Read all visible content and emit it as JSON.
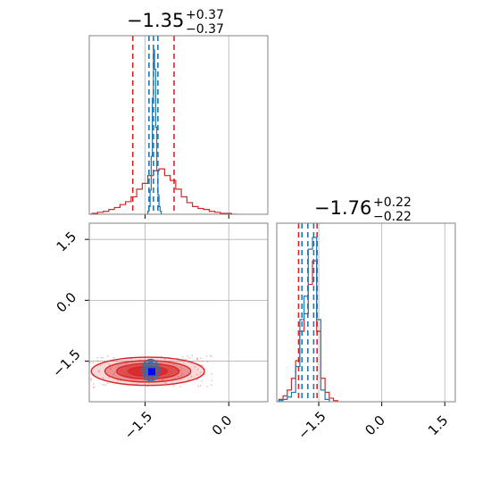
{
  "chart_data": {
    "type": "corner",
    "colors": {
      "series_a": "#1f77b4",
      "series_b": "#d62728",
      "marker": "#0000ff",
      "grid": "#b0b0b0",
      "frame": "#808080"
    },
    "panels": [
      {
        "type": "histogram",
        "position": "top-left",
        "title": {
          "value": "−1.35",
          "upper": "+0.37",
          "lower": "−0.37"
        },
        "xlim": [
          -2.5,
          0.7
        ],
        "xticks": [
          -1.5,
          0.0
        ],
        "grid": true,
        "series": [
          {
            "color": "#1f77b4",
            "bins_x": [
              -1.44,
              -1.42,
              -1.4,
              -1.38,
              -1.36,
              -1.34,
              -1.32,
              -1.3,
              -1.28,
              -1.26,
              -1.24,
              -1.22
            ],
            "counts": [
              3,
              8,
              25,
              60,
              120,
              170,
              150,
              90,
              45,
              20,
              8,
              3
            ],
            "quantile_lines": [
              -1.43,
              -1.35,
              -1.27
            ]
          },
          {
            "color": "#d62728",
            "bins_x": [
              -2.5,
              -2.4,
              -2.3,
              -2.2,
              -2.1,
              -2.0,
              -1.9,
              -1.8,
              -1.7,
              -1.6,
              -1.5,
              -1.4,
              -1.3,
              -1.2,
              -1.1,
              -1.0,
              -0.9,
              -0.8,
              -0.7,
              -0.6,
              -0.5,
              -0.4,
              -0.3,
              -0.2,
              -0.1,
              0.0,
              0.1
            ],
            "counts": [
              0,
              1,
              2,
              3,
              5,
              7,
              10,
              13,
              18,
              26,
              32,
              40,
              45,
              47,
              40,
              35,
              26,
              18,
              12,
              8,
              6,
              5,
              3,
              2,
              1,
              1,
              0
            ],
            "quantile_lines": [
              -1.72,
              -0.98
            ]
          }
        ]
      },
      {
        "type": "contour",
        "position": "bottom-left",
        "xlim": [
          -2.5,
          0.7
        ],
        "ylim": [
          -2.5,
          1.9
        ],
        "xticks": [
          -1.5,
          0.0
        ],
        "yticks": [
          -1.5,
          0.0,
          1.5
        ],
        "grid": true,
        "series": [
          {
            "color": "#d62728",
            "center": [
              -1.45,
              -1.75
            ],
            "sigma": [
              0.35,
              0.12
            ],
            "levels": [
              1.0,
              1.6,
              2.2,
              2.9
            ]
          },
          {
            "color": "#1f77b4",
            "center": [
              -1.4,
              -1.72
            ],
            "sigma": [
              0.07,
              0.12
            ],
            "levels": [
              1.0,
              1.6,
              2.2
            ]
          }
        ],
        "marker": {
          "x": -1.38,
          "y": -1.76,
          "color": "#0000ff"
        }
      },
      {
        "type": "histogram",
        "position": "bottom-right",
        "title": {
          "value": "−1.76",
          "upper": "+0.22",
          "lower": "−0.22"
        },
        "xlim": [
          -2.5,
          1.75
        ],
        "xticks": [
          -1.5,
          0.0,
          1.5
        ],
        "grid": true,
        "series": [
          {
            "color": "#1f77b4",
            "bins_x": [
              -2.4,
              -2.3,
              -2.2,
              -2.1,
              -2.0,
              -1.9,
              -1.8,
              -1.7,
              -1.6,
              -1.5,
              -1.4,
              -1.3
            ],
            "counts": [
              1,
              2,
              4,
              8,
              30,
              70,
              90,
              130,
              140,
              70,
              10,
              2
            ],
            "quantile_lines": [
              -1.9,
              -1.76,
              -1.62
            ]
          },
          {
            "color": "#d62728",
            "bins_x": [
              -2.4,
              -2.3,
              -2.2,
              -2.1,
              -2.0,
              -1.9,
              -1.8,
              -1.7,
              -1.6,
              -1.5,
              -1.4,
              -1.3,
              -1.2,
              -1.1
            ],
            "counts": [
              2,
              5,
              10,
              20,
              35,
              60,
              75,
              100,
              120,
              60,
              20,
              8,
              3,
              1
            ],
            "quantile_lines": [
              -1.98,
              -1.54
            ]
          }
        ]
      }
    ]
  }
}
